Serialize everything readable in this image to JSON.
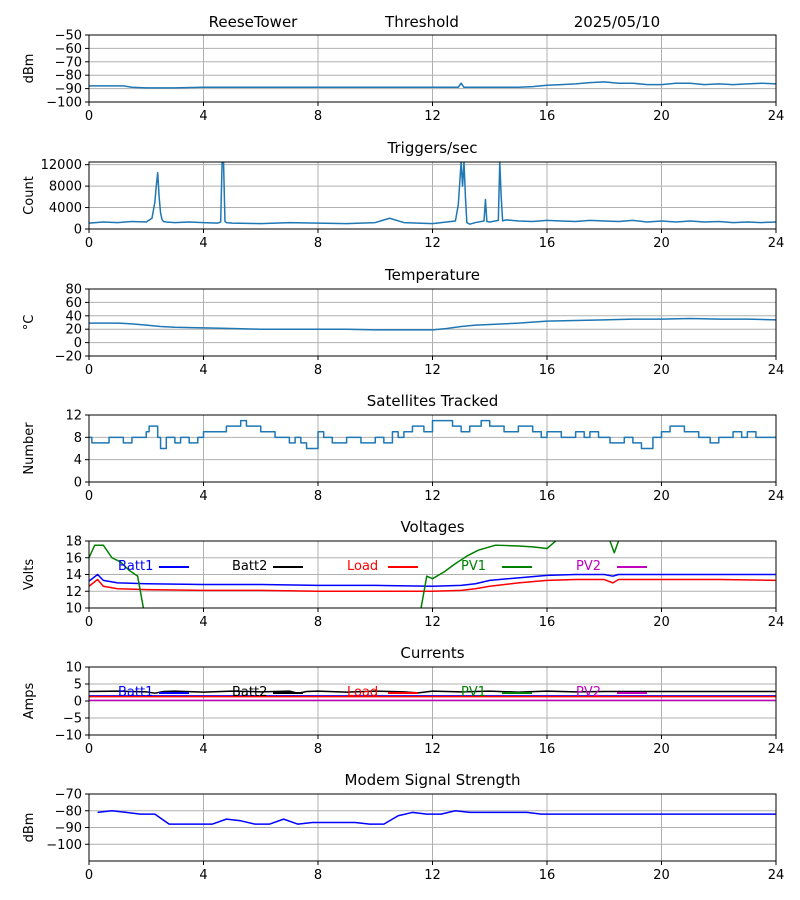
{
  "header": {
    "station": "ReeseTower",
    "page": "Threshold",
    "date": "2025/05/10"
  },
  "colors": {
    "series_default": "#1f77b4",
    "grid": "#b0b0b0"
  },
  "chart_data": [
    {
      "type": "line",
      "title": "",
      "ylabel": "dBm",
      "xlim": [
        0,
        24
      ],
      "xticks": [
        0,
        4,
        8,
        12,
        16,
        20,
        24
      ],
      "ylim": [
        -100,
        -50
      ],
      "yticks": [
        -100,
        -90,
        -80,
        -70,
        -60,
        -50
      ],
      "grid": true,
      "series": [
        {
          "color": "#1f77b4",
          "width": 1.5,
          "x": [
            0,
            1.2,
            1.5,
            2,
            2.5,
            3,
            4,
            5,
            6,
            7,
            8,
            9,
            10,
            11,
            12,
            12.9,
            13,
            13.1,
            14,
            15,
            15.5,
            16,
            16.5,
            17,
            17.5,
            18,
            18.5,
            19,
            19.5,
            20,
            20.5,
            21,
            21.5,
            22,
            22.5,
            23,
            23.5,
            24
          ],
          "y": [
            -88,
            -88,
            -89,
            -89.5,
            -89.5,
            -89.5,
            -89,
            -89,
            -89,
            -89,
            -89,
            -89,
            -89,
            -89,
            -89,
            -89,
            -86,
            -89,
            -89,
            -89,
            -88.5,
            -87.5,
            -87,
            -86.5,
            -85.5,
            -85,
            -86,
            -86,
            -87,
            -87,
            -86,
            -86,
            -87,
            -86.5,
            -87,
            -86.5,
            -86,
            -86.5
          ]
        }
      ]
    },
    {
      "type": "line",
      "title": "Triggers/sec",
      "ylabel": "Count",
      "xlim": [
        0,
        24
      ],
      "xticks": [
        0,
        4,
        8,
        12,
        16,
        20,
        24
      ],
      "ylim": [
        0,
        12500
      ],
      "yticks": [
        0,
        4000,
        8000,
        12000
      ],
      "grid": true,
      "series": [
        {
          "color": "#1f77b4",
          "width": 1.5,
          "x": [
            0,
            0.5,
            1,
            1.5,
            2,
            2.2,
            2.3,
            2.35,
            2.4,
            2.45,
            2.5,
            2.55,
            2.6,
            2.7,
            3,
            3.5,
            4,
            4.5,
            4.6,
            4.65,
            4.7,
            4.75,
            4.8,
            5,
            6,
            7,
            8,
            9,
            10,
            10.5,
            11,
            12,
            12.8,
            12.9,
            13.0,
            13.05,
            13.1,
            13.15,
            13.2,
            13.3,
            13.5,
            13.8,
            13.85,
            13.9,
            14,
            14.3,
            14.35,
            14.4,
            14.45,
            14.5,
            14.6,
            15,
            15.5,
            16,
            16.5,
            17,
            17.5,
            18,
            18.5,
            19,
            19.5,
            20,
            20.5,
            21,
            21.5,
            22,
            22.5,
            23,
            23.5,
            24
          ],
          "y": [
            1100,
            1300,
            1200,
            1400,
            1300,
            2000,
            5000,
            8000,
            10500,
            6000,
            3000,
            1800,
            1400,
            1300,
            1200,
            1300,
            1200,
            1100,
            1300,
            12500,
            12500,
            1400,
            1200,
            1100,
            1000,
            1200,
            1100,
            1000,
            1200,
            2000,
            1200,
            1000,
            1500,
            4500,
            12500,
            8000,
            12500,
            6000,
            1200,
            900,
            1200,
            1500,
            5500,
            1400,
            1300,
            1600,
            12500,
            6000,
            1500,
            1600,
            1700,
            1500,
            1400,
            1600,
            1500,
            1400,
            1600,
            1500,
            1400,
            1600,
            1300,
            1500,
            1300,
            1500,
            1300,
            1400,
            1200,
            1300,
            1200,
            1300
          ]
        }
      ]
    },
    {
      "type": "line",
      "title": "Temperature",
      "ylabel": "°C",
      "xlim": [
        0,
        24
      ],
      "xticks": [
        0,
        4,
        8,
        12,
        16,
        20,
        24
      ],
      "ylim": [
        -20,
        80
      ],
      "yticks": [
        -20,
        0,
        20,
        40,
        60,
        80
      ],
      "grid": true,
      "series": [
        {
          "color": "#1f77b4",
          "width": 1.5,
          "x": [
            0,
            1,
            1.5,
            2,
            2.5,
            3,
            4,
            5,
            6,
            8,
            9,
            10,
            11,
            12,
            12.5,
            13,
            13.5,
            14,
            15,
            16,
            17,
            18,
            19,
            20,
            21,
            22,
            23,
            24
          ],
          "y": [
            29,
            29,
            28,
            26,
            24,
            23,
            22,
            21,
            20,
            20,
            20,
            19,
            19,
            19,
            21,
            24,
            26,
            27,
            29,
            32,
            33,
            34,
            35,
            35,
            36,
            35,
            35,
            34
          ]
        }
      ]
    },
    {
      "type": "line",
      "title": "Satellites Tracked",
      "ylabel": "Number",
      "xlim": [
        0,
        24
      ],
      "xticks": [
        0,
        4,
        8,
        12,
        16,
        20,
        24
      ],
      "ylim": [
        0,
        12
      ],
      "yticks": [
        0,
        4,
        8,
        12
      ],
      "grid": true,
      "step": true,
      "series": [
        {
          "color": "#1f77b4",
          "width": 1.5,
          "x": [
            0,
            0.1,
            0.7,
            1.2,
            1.5,
            2,
            2.1,
            2.4,
            2.5,
            2.7,
            3,
            3.2,
            3.5,
            3.8,
            4,
            4.8,
            5.3,
            5.5,
            6,
            6.5,
            7,
            7.2,
            7.4,
            7.6,
            8,
            8.2,
            8.5,
            9,
            9.5,
            10,
            10.3,
            10.6,
            10.8,
            11,
            11.3,
            11.7,
            12,
            12.7,
            13,
            13.3,
            13.7,
            14,
            14.5,
            15,
            15.5,
            15.8,
            16,
            16.5,
            17,
            17.3,
            17.5,
            17.8,
            18.2,
            18.7,
            19,
            19.3,
            19.7,
            20,
            20.3,
            20.8,
            21.3,
            21.7,
            22,
            22.5,
            22.8,
            23,
            23.3,
            23.5,
            24
          ],
          "y": [
            8,
            7,
            8,
            7,
            8,
            9,
            10,
            8,
            6,
            8,
            7,
            8,
            7,
            8,
            9,
            10,
            11,
            10,
            9,
            8,
            7,
            8,
            7,
            6,
            9,
            8,
            7,
            8,
            7,
            8,
            7,
            9,
            8,
            9,
            10,
            9,
            11,
            10,
            9,
            10,
            11,
            10,
            9,
            10,
            9,
            8,
            9,
            8,
            9,
            8,
            9,
            8,
            7,
            8,
            7,
            6,
            8,
            9,
            10,
            9,
            8,
            7,
            8,
            9,
            8,
            9,
            8,
            8,
            8
          ]
        }
      ]
    },
    {
      "type": "line",
      "title": "Voltages",
      "ylabel": "Volts",
      "xlim": [
        0,
        24
      ],
      "xticks": [
        0,
        4,
        8,
        12,
        16,
        20,
        24
      ],
      "ylim": [
        10,
        18
      ],
      "yticks": [
        10,
        12,
        14,
        16,
        18
      ],
      "grid": true,
      "legend": "top",
      "series": [
        {
          "name": "Batt1",
          "color": "#0000ff",
          "width": 1.5,
          "x": [
            0,
            0.3,
            0.5,
            1,
            2,
            4,
            6,
            8,
            10,
            12,
            13,
            13.5,
            14,
            15,
            16,
            17,
            18,
            18.3,
            18.5,
            20,
            22,
            24
          ],
          "y": [
            13.2,
            14,
            13.3,
            13,
            12.9,
            12.8,
            12.8,
            12.7,
            12.7,
            12.6,
            12.7,
            12.9,
            13.3,
            13.6,
            13.9,
            14,
            14,
            13.8,
            14,
            14,
            14,
            14
          ]
        },
        {
          "name": "Batt2",
          "color": "#000000",
          "width": 1.5,
          "x": [],
          "y": []
        },
        {
          "name": "Load",
          "color": "#ff0000",
          "width": 1.5,
          "x": [
            0,
            0.3,
            0.5,
            1,
            2,
            4,
            6,
            8,
            10,
            12,
            13,
            13.5,
            14,
            15,
            16,
            17,
            18,
            18.3,
            18.5,
            20,
            22,
            24
          ],
          "y": [
            12.6,
            13.4,
            12.6,
            12.3,
            12.2,
            12.1,
            12.1,
            12,
            12,
            12,
            12.1,
            12.3,
            12.6,
            13,
            13.3,
            13.4,
            13.4,
            13,
            13.4,
            13.4,
            13.4,
            13.3
          ]
        },
        {
          "name": "PV1",
          "color": "#008000",
          "width": 1.5,
          "segments": [
            {
              "x": [
                0,
                0.2,
                0.5,
                0.8,
                1.1,
                1.4,
                1.7,
                1.9
              ],
              "y": [
                16,
                17.5,
                17.5,
                16,
                15.5,
                14.5,
                13.8,
                10
              ]
            },
            {
              "x": [
                11.6,
                11.8,
                12,
                12.4,
                12.8,
                13.2,
                13.6,
                14.2,
                15,
                15.5,
                16,
                16.3
              ],
              "y": [
                10,
                13.8,
                13.5,
                14.3,
                15.3,
                16.2,
                16.9,
                17.5,
                17.4,
                17.3,
                17.1,
                18
              ]
            },
            {
              "x": [
                18.2,
                18.35,
                18.5
              ],
              "y": [
                18,
                16.6,
                18
              ]
            }
          ]
        },
        {
          "name": "PV2",
          "color": "#bf00bf",
          "width": 1.5,
          "x": [],
          "y": []
        }
      ]
    },
    {
      "type": "line",
      "title": "Currents",
      "ylabel": "Amps",
      "xlim": [
        0,
        24
      ],
      "xticks": [
        0,
        4,
        8,
        12,
        16,
        20,
        24
      ],
      "ylim": [
        -10,
        10
      ],
      "yticks": [
        -10,
        -5,
        0,
        5,
        10
      ],
      "grid": true,
      "legend": "top",
      "series": [
        {
          "name": "Batt1",
          "color": "#0000ff",
          "width": 1.5,
          "x": [
            0,
            24
          ],
          "y": [
            1.5,
            1.5
          ]
        },
        {
          "name": "Batt2",
          "color": "#000000",
          "width": 1.5,
          "x": [
            0,
            1,
            2,
            2.3,
            2.6,
            3,
            4,
            5,
            6,
            7,
            7.3,
            7.6,
            8,
            9,
            10,
            11,
            11.5,
            12,
            13,
            14,
            15,
            16,
            17,
            18,
            20,
            22,
            24
          ],
          "y": [
            2.8,
            2.9,
            2.7,
            2.3,
            2.8,
            2.9,
            2.6,
            2.9,
            2.7,
            2.9,
            2.3,
            2.8,
            2.9,
            2.6,
            2.9,
            2.7,
            2.4,
            2.9,
            2.7,
            2.9,
            2.6,
            2.9,
            2.7,
            2.8,
            2.8,
            2.8,
            2.8
          ]
        },
        {
          "name": "Load",
          "color": "#ff0000",
          "width": 1.5,
          "x": [
            0,
            24
          ],
          "y": [
            1.3,
            1.3
          ]
        },
        {
          "name": "PV1",
          "color": "#008000",
          "width": 1.5,
          "x": [],
          "y": []
        },
        {
          "name": "PV2",
          "color": "#bf00bf",
          "width": 1.5,
          "x": [
            0,
            24
          ],
          "y": [
            0.2,
            0.2
          ]
        }
      ]
    },
    {
      "type": "line",
      "title": "Modem Signal Strength",
      "ylabel": "dBm",
      "xlim": [
        0,
        24
      ],
      "xticks": [
        0,
        4,
        8,
        12,
        16,
        20,
        24
      ],
      "ylim": [
        -110,
        -70
      ],
      "yticks": [
        -100,
        -90,
        -80,
        -70
      ],
      "grid": true,
      "series": [
        {
          "color": "#0000ff",
          "width": 1.5,
          "x": [
            0.3,
            0.8,
            1.3,
            1.8,
            2.3,
            2.8,
            3.3,
            3.8,
            4.3,
            4.8,
            5.3,
            5.8,
            6.3,
            6.8,
            7.3,
            7.8,
            8.3,
            8.8,
            9.3,
            9.8,
            10.3,
            10.8,
            11.3,
            11.8,
            12.3,
            12.8,
            13.3,
            13.8,
            14.3,
            14.8,
            15.3,
            15.8,
            16.3,
            24
          ],
          "y": [
            -81,
            -80,
            -81,
            -82,
            -82,
            -88,
            -88,
            -88,
            -88,
            -85,
            -86,
            -88,
            -88,
            -85,
            -88,
            -87,
            -87,
            -87,
            -87,
            -88,
            -88,
            -83,
            -81,
            -82,
            -82,
            -80,
            -81,
            -81,
            -81,
            -81,
            -81,
            -82,
            -82,
            -82
          ]
        }
      ]
    }
  ]
}
